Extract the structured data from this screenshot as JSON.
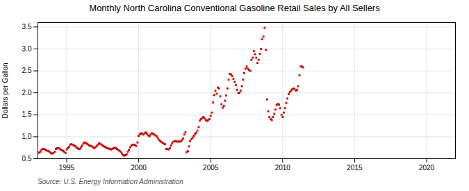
{
  "chart_data": {
    "type": "scatter",
    "title": "Monthly North Carolina Conventional Gasoline Retail Sales by All Sellers",
    "ylabel": "Dollars per Gallon",
    "annotation": "Source: U.S. Energy Information Administration",
    "color": "#CC0000",
    "marker": "square",
    "grid": true,
    "xlim": [
      1993.0,
      2022.0
    ],
    "ylim": [
      0.5,
      3.6
    ],
    "xticks": [
      1995,
      2000,
      2005,
      2010,
      2015,
      2020
    ],
    "yticks": [
      0.5,
      {
        "value": 1.0,
        "label": "1.0"
      },
      1.5,
      {
        "value": 2.0,
        "label": "2.0"
      },
      2.5,
      {
        "value": 3.0,
        "label": "3.0"
      },
      3.5
    ],
    "x": [
      1993.0,
      1993.08,
      1993.17,
      1993.25,
      1993.33,
      1993.42,
      1993.5,
      1993.58,
      1993.67,
      1993.75,
      1993.83,
      1993.92,
      1994.0,
      1994.08,
      1994.17,
      1994.25,
      1994.33,
      1994.42,
      1994.5,
      1994.58,
      1994.67,
      1994.75,
      1994.83,
      1994.92,
      1995.0,
      1995.08,
      1995.17,
      1995.25,
      1995.33,
      1995.42,
      1995.5,
      1995.58,
      1995.67,
      1995.75,
      1995.83,
      1995.92,
      1996.0,
      1996.08,
      1996.17,
      1996.25,
      1996.33,
      1996.42,
      1996.5,
      1996.58,
      1996.67,
      1996.75,
      1996.83,
      1996.92,
      1997.0,
      1997.08,
      1997.17,
      1997.25,
      1997.33,
      1997.42,
      1997.5,
      1997.58,
      1997.67,
      1997.75,
      1997.83,
      1997.92,
      1998.0,
      1998.08,
      1998.17,
      1998.25,
      1998.33,
      1998.42,
      1998.5,
      1998.58,
      1998.67,
      1998.75,
      1998.83,
      1998.92,
      1999.0,
      1999.08,
      1999.17,
      1999.25,
      1999.33,
      1999.42,
      1999.5,
      1999.58,
      1999.67,
      1999.75,
      1999.83,
      1999.92,
      2000.0,
      2000.08,
      2000.17,
      2000.25,
      2000.33,
      2000.42,
      2000.5,
      2000.58,
      2000.67,
      2000.75,
      2000.83,
      2000.92,
      2001.0,
      2001.08,
      2001.17,
      2001.25,
      2001.33,
      2001.42,
      2001.5,
      2001.58,
      2001.67,
      2001.75,
      2001.83,
      2001.92,
      2002.0,
      2002.08,
      2002.17,
      2002.25,
      2002.33,
      2002.42,
      2002.5,
      2002.58,
      2002.67,
      2002.75,
      2002.83,
      2002.92,
      2003.0,
      2003.08,
      2003.17,
      2003.25,
      2003.33,
      2003.42,
      2003.5,
      2003.58,
      2003.67,
      2003.75,
      2003.83,
      2003.92,
      2004.0,
      2004.08,
      2004.17,
      2004.25,
      2004.33,
      2004.42,
      2004.5,
      2004.58,
      2004.67,
      2004.75,
      2004.83,
      2004.92,
      2005.0,
      2005.08,
      2005.17,
      2005.25,
      2005.33,
      2005.42,
      2005.5,
      2005.58,
      2005.67,
      2005.75,
      2005.83,
      2005.92,
      2006.0,
      2006.08,
      2006.17,
      2006.25,
      2006.33,
      2006.42,
      2006.5,
      2006.58,
      2006.67,
      2006.75,
      2006.83,
      2006.92,
      2007.0,
      2007.08,
      2007.17,
      2007.25,
      2007.33,
      2007.42,
      2007.5,
      2007.58,
      2007.67,
      2007.75,
      2007.83,
      2007.92,
      2008.0,
      2008.08,
      2008.17,
      2008.25,
      2008.33,
      2008.42,
      2008.5,
      2008.58,
      2008.67,
      2008.75,
      2008.83,
      2008.92,
      2009.0,
      2009.08,
      2009.17,
      2009.25,
      2009.33,
      2009.42,
      2009.5,
      2009.58,
      2009.67,
      2009.75,
      2009.83,
      2009.92,
      2010.0,
      2010.08,
      2010.17,
      2010.25,
      2010.33,
      2010.42,
      2010.5,
      2010.58,
      2010.67,
      2010.75,
      2010.83,
      2010.92,
      2011.0,
      2011.08,
      2011.17,
      2011.25,
      2011.33,
      2011.42
    ],
    "values": [
      0.63,
      0.64,
      0.66,
      0.7,
      0.72,
      0.72,
      0.71,
      0.69,
      0.68,
      0.67,
      0.65,
      0.62,
      0.62,
      0.63,
      0.66,
      0.72,
      0.74,
      0.74,
      0.73,
      0.71,
      0.69,
      0.68,
      0.66,
      0.63,
      0.71,
      0.74,
      0.77,
      0.82,
      0.83,
      0.82,
      0.8,
      0.79,
      0.76,
      0.74,
      0.72,
      0.72,
      0.76,
      0.8,
      0.85,
      0.87,
      0.86,
      0.84,
      0.82,
      0.8,
      0.79,
      0.78,
      0.76,
      0.74,
      0.76,
      0.79,
      0.82,
      0.85,
      0.84,
      0.82,
      0.8,
      0.78,
      0.77,
      0.75,
      0.74,
      0.73,
      0.72,
      0.71,
      0.72,
      0.74,
      0.75,
      0.74,
      0.72,
      0.7,
      0.68,
      0.66,
      0.62,
      0.58,
      0.57,
      0.58,
      0.6,
      0.66,
      0.7,
      0.76,
      0.8,
      0.82,
      0.82,
      0.81,
      0.79,
      0.87,
      1.02,
      1.06,
      1.08,
      1.07,
      1.05,
      1.08,
      1.1,
      1.07,
      1.03,
      1.01,
      1.05,
      1.08,
      1.07,
      1.05,
      1.03,
      1.01,
      0.97,
      0.93,
      0.9,
      0.88,
      0.86,
      0.84,
      0.83,
      0.72,
      0.72,
      0.71,
      0.74,
      0.8,
      0.85,
      0.89,
      0.9,
      0.9,
      0.89,
      0.89,
      0.89,
      0.89,
      0.92,
      0.96,
      1.05,
      1.1,
      0.65,
      0.67,
      0.78,
      0.9,
      0.95,
      0.98,
      1.02,
      1.06,
      1.09,
      1.14,
      1.22,
      1.37,
      1.4,
      1.43,
      1.45,
      1.42,
      1.38,
      1.36,
      1.38,
      1.4,
      1.48,
      1.55,
      1.78,
      1.95,
      2.05,
      1.98,
      2.12,
      2.1,
      1.92,
      1.74,
      1.66,
      1.7,
      1.82,
      1.94,
      2.1,
      2.3,
      2.43,
      2.42,
      2.38,
      2.32,
      2.25,
      2.18,
      2.07,
      2.0,
      2.0,
      2.05,
      2.15,
      2.3,
      2.45,
      2.55,
      2.6,
      2.55,
      2.52,
      2.5,
      2.75,
      2.8,
      2.95,
      2.88,
      2.8,
      2.68,
      2.75,
      2.89,
      3.0,
      3.22,
      3.28,
      3.48,
      2.98,
      1.85,
      1.58,
      1.45,
      1.4,
      1.38,
      1.45,
      1.52,
      1.62,
      1.72,
      1.75,
      1.73,
      1.65,
      1.5,
      1.45,
      1.55,
      1.65,
      1.77,
      1.87,
      1.97,
      2.02,
      2.05,
      2.08,
      2.1,
      2.08,
      2.05,
      2.07,
      2.15,
      2.4,
      2.6,
      2.6,
      2.58
    ]
  }
}
